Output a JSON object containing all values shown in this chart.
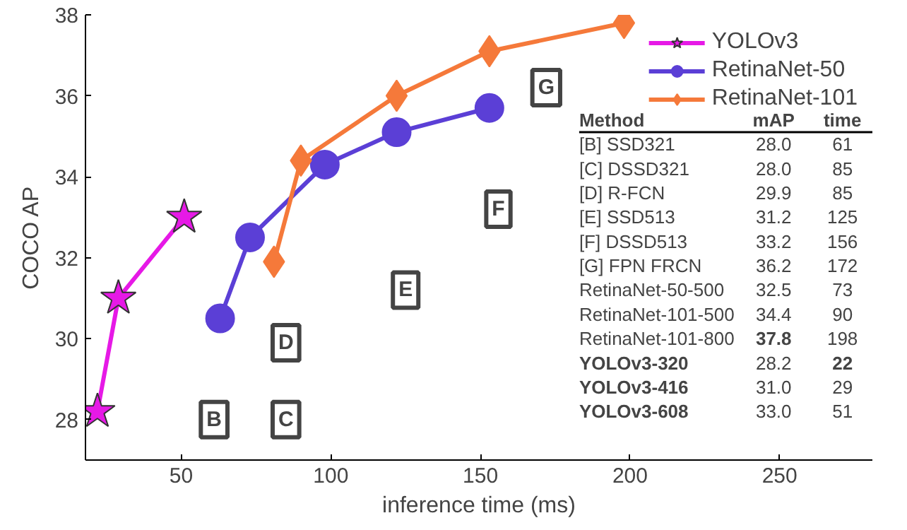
{
  "chart_data": {
    "type": "line",
    "xlabel": "inference time (ms)",
    "ylabel": "COCO AP",
    "xlim": [
      18,
      281
    ],
    "ylim": [
      27,
      38
    ],
    "xticks": [
      50,
      100,
      150,
      200,
      250
    ],
    "yticks": [
      28,
      30,
      32,
      34,
      36,
      38
    ],
    "grid": false,
    "legend": "top right",
    "series": [
      {
        "name": "YOLOv3",
        "color": "#e619e6",
        "marker": "star",
        "x": [
          22,
          29,
          51
        ],
        "values": [
          28.2,
          31.0,
          33.0
        ]
      },
      {
        "name": "RetinaNet-50",
        "color": "#5b3fd6",
        "marker": "circle",
        "x": [
          63,
          73,
          98,
          122,
          153
        ],
        "values": [
          30.5,
          32.5,
          34.3,
          35.1,
          35.7
        ]
      },
      {
        "name": "RetinaNet-101",
        "color": "#f5793a",
        "marker": "diamond",
        "x": [
          81,
          90,
          122,
          153,
          198
        ],
        "values": [
          31.9,
          34.4,
          36.0,
          37.1,
          37.8
        ]
      }
    ],
    "annotations": [
      {
        "text": "B",
        "x": 61,
        "y": 28.0
      },
      {
        "text": "C",
        "x": 85,
        "y": 28.0
      },
      {
        "text": "D",
        "x": 85,
        "y": 29.9
      },
      {
        "text": "E",
        "x": 125,
        "y": 31.2
      },
      {
        "text": "F",
        "x": 156,
        "y": 33.2
      },
      {
        "text": "G",
        "x": 172,
        "y": 36.2
      },
      "Method",
      "mAP",
      "time",
      "[B] SSD321",
      "28.0",
      "61",
      "[C] DSSD321",
      "28.0",
      "85",
      "[D] R-FCN",
      "29.9",
      "85",
      "[E] SSD513",
      "31.2",
      "125",
      "[F] DSSD513",
      "33.2",
      "156",
      "[G] FPN FRCN",
      "36.2",
      "172",
      "RetinaNet-50-500",
      "32.5",
      "73",
      "RetinaNet-101-500",
      "34.4",
      "90",
      "RetinaNet-101-800",
      "37.8",
      "198",
      "YOLOv3-320",
      "28.2",
      "22",
      "YOLOv3-416",
      "31.0",
      "29",
      "YOLOv3-608",
      "33.0",
      "51"
    ]
  }
}
